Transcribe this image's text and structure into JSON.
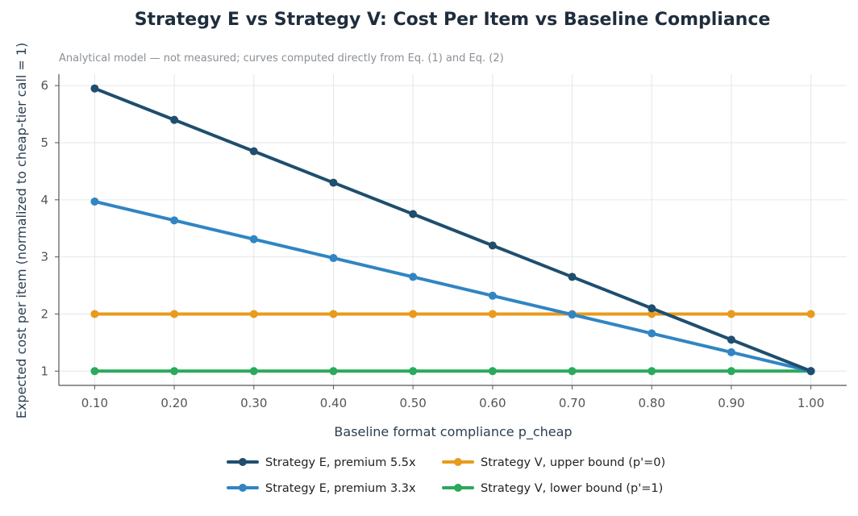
{
  "chart_data": {
    "type": "line",
    "title": "Strategy E vs Strategy V: Cost Per Item vs Baseline Compliance",
    "subtitle": "Analytical model — not measured; curves computed directly from Eq. (1) and Eq. (2)",
    "xlabel": "Baseline format compliance  p_cheap",
    "ylabel": "Expected cost per item (normalized to cheap-tier call = 1)",
    "x": [
      0.1,
      0.2,
      0.3,
      0.4,
      0.5,
      0.6,
      0.7,
      0.8,
      0.9,
      1.0
    ],
    "x_tick_labels": [
      "0.10",
      "0.20",
      "0.30",
      "0.40",
      "0.50",
      "0.60",
      "0.70",
      "0.80",
      "0.90",
      "1.00"
    ],
    "y_ticks": [
      1,
      2,
      3,
      4,
      5,
      6
    ],
    "xlim": [
      0.055,
      1.045
    ],
    "ylim": [
      0.75,
      6.2
    ],
    "grid": true,
    "legend_position": "bottom-center",
    "series": [
      {
        "name": "Strategy E, premium 5.5x",
        "color": "#1f4e6e",
        "values": [
          5.95,
          5.4,
          4.85,
          4.3,
          3.75,
          3.2,
          2.65,
          2.1,
          1.55,
          1.0
        ]
      },
      {
        "name": "Strategy E, premium 3.3x",
        "color": "#3185c3",
        "values": [
          3.97,
          3.64,
          3.31,
          2.98,
          2.65,
          2.32,
          1.99,
          1.66,
          1.33,
          1.0
        ]
      },
      {
        "name": "Strategy V, upper bound (p'=0)",
        "color": "#e89b1c",
        "values": [
          2.0,
          2.0,
          2.0,
          2.0,
          2.0,
          2.0,
          2.0,
          2.0,
          2.0,
          2.0
        ]
      },
      {
        "name": "Strategy V, lower bound (p'=1)",
        "color": "#2aaa5a",
        "values": [
          1.0,
          1.0,
          1.0,
          1.0,
          1.0,
          1.0,
          1.0,
          1.0,
          1.0,
          1.0
        ]
      }
    ]
  }
}
